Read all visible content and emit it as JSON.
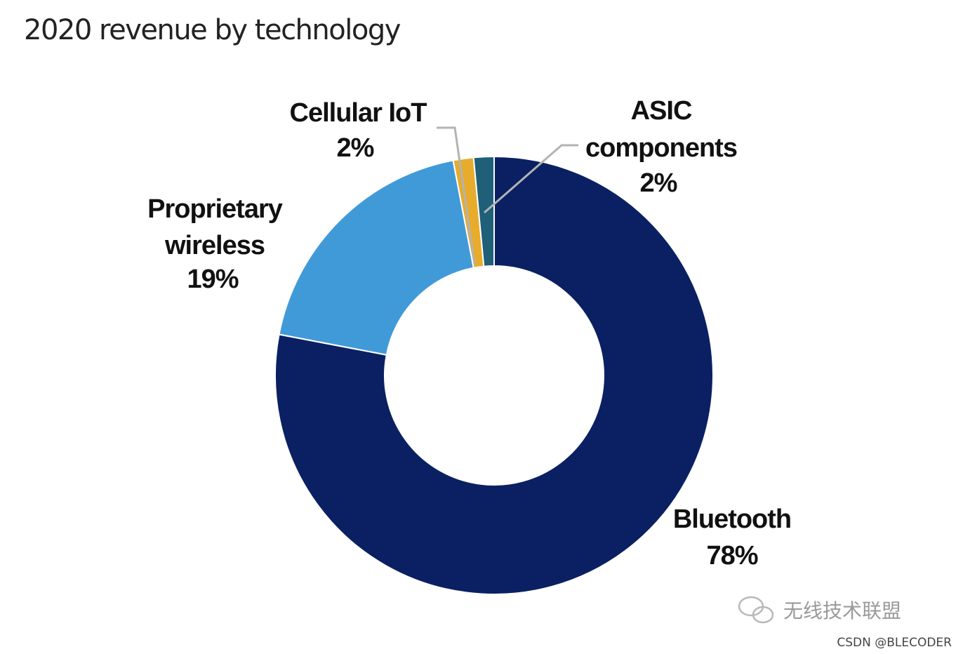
{
  "chart_data": {
    "type": "pie",
    "title": "2020 revenue by technology",
    "donut": true,
    "slices": [
      {
        "label": "Bluetooth",
        "value": 78,
        "value_label": "78%",
        "color": "#0a2062"
      },
      {
        "label": "Proprietary wireless",
        "value": 19,
        "value_label": "19%",
        "color": "#419ad8"
      },
      {
        "label": "Cellular IoT",
        "value": 1.5,
        "value_label": "2%",
        "color": "#e8ac2c"
      },
      {
        "label": "ASIC components",
        "value": 1.5,
        "value_label": "2%",
        "color": "#1f5f78"
      }
    ]
  },
  "labels": {
    "bluetooth": [
      "Bluetooth",
      "78%"
    ],
    "proprietary": [
      "Proprietary",
      "wireless",
      "19%"
    ],
    "cellular": [
      "Cellular IoT",
      "2%"
    ],
    "asic": [
      "ASIC",
      "components",
      "2%"
    ]
  },
  "watermark": {
    "text": "无线技术联盟",
    "icon": "wechat-icon",
    "credit": "CSDN @BLECODER"
  }
}
